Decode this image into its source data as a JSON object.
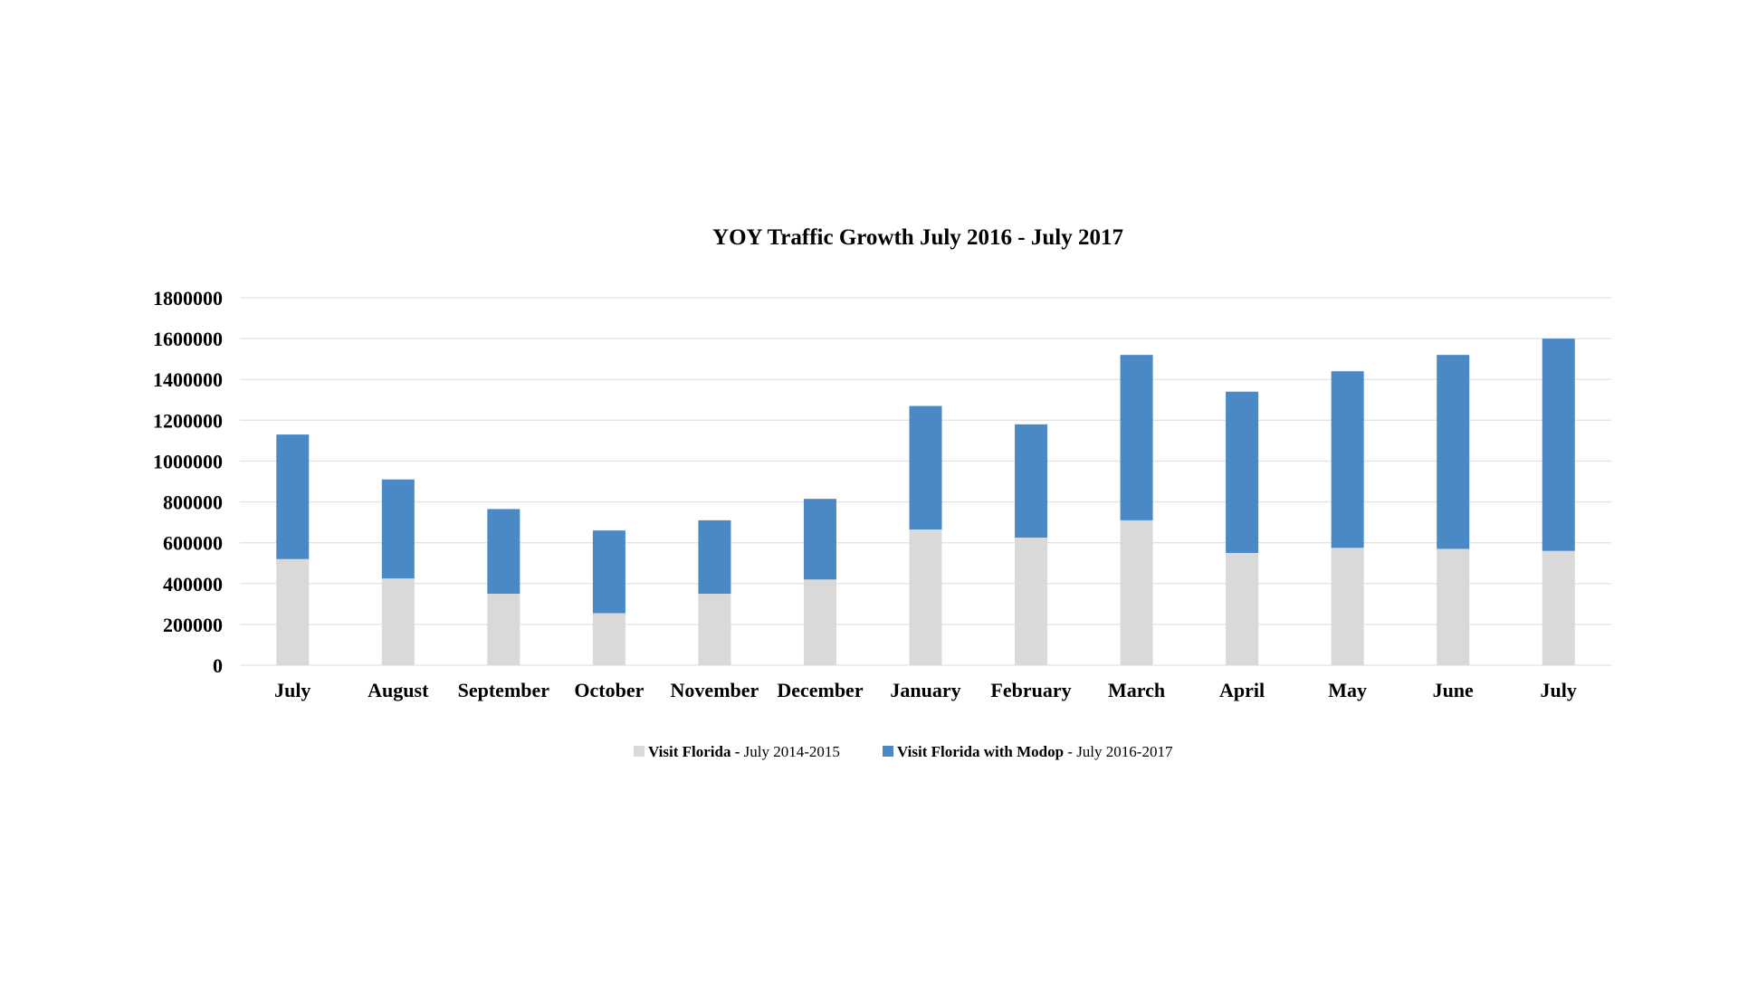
{
  "chart_data": {
    "type": "bar",
    "stacked": true,
    "title": "YOY Traffic Growth July 2016 - July 2017",
    "xlabel": "",
    "ylabel": "",
    "categories": [
      "July",
      "August",
      "September",
      "October",
      "November",
      "December",
      "January",
      "February",
      "March",
      "April",
      "May",
      "June",
      "July"
    ],
    "ylim": [
      0,
      1800000
    ],
    "yticks": [
      "0",
      "200000",
      "400000",
      "600000",
      "800000",
      "1000000",
      "1200000",
      "1400000",
      "1600000",
      "1800000"
    ],
    "grid": true,
    "legend_position": "bottom",
    "series": [
      {
        "legend_bold": "Visit Florida - ",
        "legend_rest": "July 2014-2015",
        "color": "#d9d9d9",
        "values": [
          520000,
          425000,
          350000,
          255000,
          350000,
          420000,
          665000,
          625000,
          710000,
          550000,
          575000,
          570000,
          560000
        ]
      },
      {
        "legend_bold": "Visit Florida with Modop ",
        "legend_rest": " - July 2016-2017",
        "color": "#4a89c5",
        "values": [
          610000,
          485000,
          415000,
          405000,
          360000,
          395000,
          605000,
          555000,
          810000,
          790000,
          865000,
          950000,
          1040000
        ]
      }
    ]
  }
}
